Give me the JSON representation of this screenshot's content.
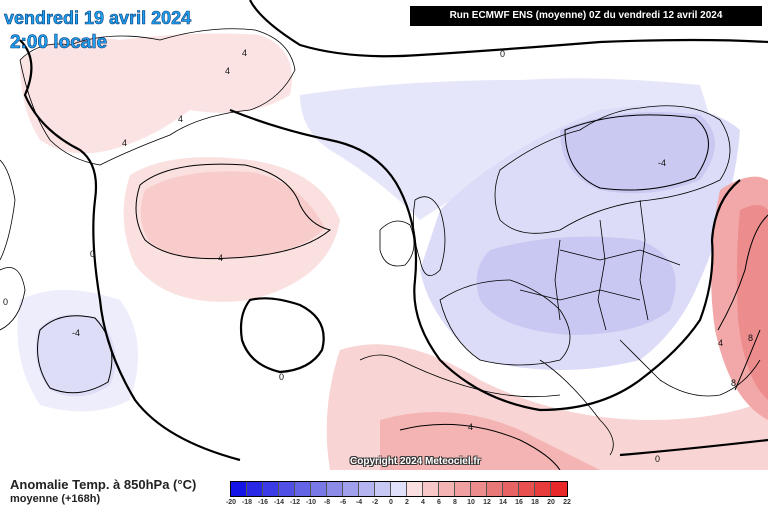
{
  "header": {
    "date": "vendredi 19 avril 2024",
    "time": "2:00 locale",
    "run": "Run ECMWF ENS (moyenne) 0Z du vendredi 12 avril 2024"
  },
  "map": {
    "copyright": "Copyright 2024 Meteociel.fr",
    "contour_labels": {
      "c0_top": "0",
      "c4_greenland_a": "4",
      "c4_greenland_b": "4",
      "c4_greenland_c": "4",
      "c4_greenland_d": "4",
      "c4_mid_atlantic": "4",
      "c0_west": "0",
      "c0_far_west": "0",
      "cm4_west": "-4",
      "c0_azores": "0",
      "cm4_scandinavia": "-4",
      "c4_north_africa": "4",
      "c4_russia": "4",
      "c8_russia_a": "8",
      "c8_russia_b": "8",
      "c0_bottom": "0"
    }
  },
  "legend": {
    "title": "Anomalie Temp. à 850hPa (°C)",
    "subtitle": "moyenne (+168h)",
    "ticks": [
      "-20",
      "-18",
      "-16",
      "-14",
      "-12",
      "-10",
      "-8",
      "-6",
      "-4",
      "-2",
      "0",
      "2",
      "4",
      "6",
      "8",
      "10",
      "12",
      "14",
      "16",
      "18",
      "20",
      "22"
    ],
    "colors": [
      "#1414e6",
      "#2828e6",
      "#3c3ce6",
      "#5050e6",
      "#6464e6",
      "#7878e6",
      "#8c8ce8",
      "#a0a0ec",
      "#b4b4f0",
      "#c8c8f4",
      "#e0e0fa",
      "#fae0e0",
      "#f8c8c8",
      "#f4b4b4",
      "#f0a0a0",
      "#ec8c8c",
      "#e87878",
      "#e86464",
      "#e85050",
      "#e83c3c",
      "#e82828"
    ]
  }
}
